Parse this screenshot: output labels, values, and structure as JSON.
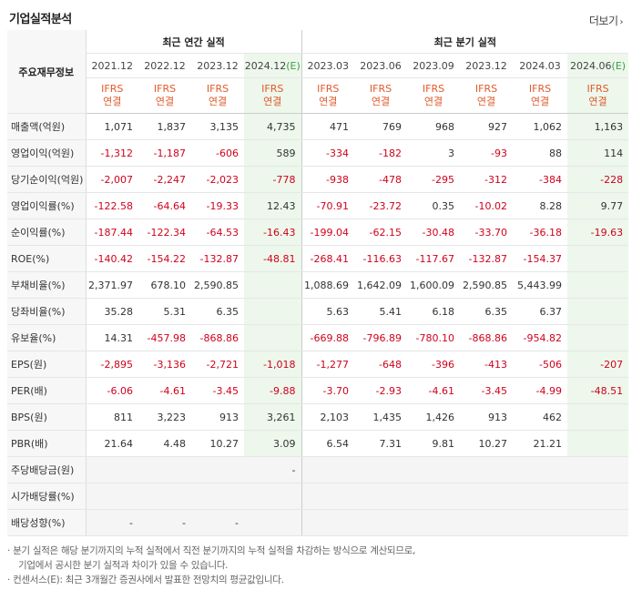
{
  "section_title": "기업실적분석",
  "more_link": "더보기",
  "more_chev": "›",
  "row_header_label": "주요재무정보",
  "groups": {
    "annual": "최근 연간 실적",
    "quarterly": "최근 분기 실적"
  },
  "periods": [
    {
      "label": "2021.12",
      "est": false
    },
    {
      "label": "2022.12",
      "est": false
    },
    {
      "label": "2023.12",
      "est": false
    },
    {
      "label": "2024.12",
      "est_mark": "(E)",
      "est": true
    },
    {
      "label": "2023.03",
      "est": false
    },
    {
      "label": "2023.06",
      "est": false
    },
    {
      "label": "2023.09",
      "est": false
    },
    {
      "label": "2023.12",
      "est": false
    },
    {
      "label": "2024.03",
      "est": false
    },
    {
      "label": "2024.06",
      "est_mark": "(E)",
      "est": true
    }
  ],
  "ifrs_line1": "IFRS",
  "ifrs_line2": "연결",
  "rows": [
    {
      "label": "매출액(억원)",
      "values": [
        "1,071",
        "1,837",
        "3,135",
        "4,735",
        "471",
        "769",
        "968",
        "927",
        "1,062",
        "1,163"
      ]
    },
    {
      "label": "영업이익(억원)",
      "values": [
        "-1,312",
        "-1,187",
        "-606",
        "589",
        "-334",
        "-182",
        "3",
        "-93",
        "88",
        "114"
      ]
    },
    {
      "label": "당기순이익(억원)",
      "values": [
        "-2,007",
        "-2,247",
        "-2,023",
        "-778",
        "-938",
        "-478",
        "-295",
        "-312",
        "-384",
        "-228"
      ]
    },
    {
      "label": "영업이익률(%)",
      "values": [
        "-122.58",
        "-64.64",
        "-19.33",
        "12.43",
        "-70.91",
        "-23.72",
        "0.35",
        "-10.02",
        "8.28",
        "9.77"
      ]
    },
    {
      "label": "순이익률(%)",
      "values": [
        "-187.44",
        "-122.34",
        "-64.53",
        "-16.43",
        "-199.04",
        "-62.15",
        "-30.48",
        "-33.70",
        "-36.18",
        "-19.63"
      ]
    },
    {
      "label": "ROE(%)",
      "values": [
        "-140.42",
        "-154.22",
        "-132.87",
        "-48.81",
        "-268.41",
        "-116.63",
        "-117.67",
        "-132.87",
        "-154.37",
        ""
      ]
    },
    {
      "label": "부채비율(%)",
      "values": [
        "2,371.97",
        "678.10",
        "2,590.85",
        "",
        "1,088.69",
        "1,642.09",
        "1,600.09",
        "2,590.85",
        "5,443.99",
        ""
      ]
    },
    {
      "label": "당좌비율(%)",
      "values": [
        "35.28",
        "5.31",
        "6.35",
        "",
        "5.63",
        "5.41",
        "6.18",
        "6.35",
        "6.37",
        ""
      ]
    },
    {
      "label": "유보율(%)",
      "values": [
        "14.31",
        "-457.98",
        "-868.86",
        "",
        "-669.88",
        "-796.89",
        "-780.10",
        "-868.86",
        "-954.82",
        ""
      ]
    },
    {
      "label": "EPS(원)",
      "values": [
        "-2,895",
        "-3,136",
        "-2,721",
        "-1,018",
        "-1,277",
        "-648",
        "-396",
        "-413",
        "-506",
        "-207"
      ]
    },
    {
      "label": "PER(배)",
      "values": [
        "-6.06",
        "-4.61",
        "-3.45",
        "-9.88",
        "-3.70",
        "-2.93",
        "-4.61",
        "-3.45",
        "-4.99",
        "-48.51"
      ]
    },
    {
      "label": "BPS(원)",
      "values": [
        "811",
        "3,223",
        "913",
        "3,261",
        "2,103",
        "1,435",
        "1,426",
        "913",
        "462",
        ""
      ]
    },
    {
      "label": "PBR(배)",
      "values": [
        "21.64",
        "4.48",
        "10.27",
        "3.09",
        "6.54",
        "7.31",
        "9.81",
        "10.27",
        "21.21",
        ""
      ]
    },
    {
      "label": "주당배당금(원)",
      "values": [
        "",
        "",
        "",
        "-",
        "",
        "",
        "",
        "",
        "",
        ""
      ]
    },
    {
      "label": "시가배당률(%)",
      "values": [
        "",
        "",
        "",
        "",
        "",
        "",
        "",
        "",
        "",
        ""
      ]
    },
    {
      "label": "배당성향(%)",
      "values": [
        "-",
        "-",
        "-",
        "",
        "",
        "",
        "",
        "",
        "",
        ""
      ]
    }
  ],
  "notes": [
    "· 분기 실적은 해당 분기까지의 누적 실적에서 직전 분기까지의 누적 실적을 차감하는 방식으로 계산되므로,",
    "기업에서 공시한 분기 실적과 차이가 있을 수 있습니다.",
    "· 컨센서스(E): 최근 3개월간 증권사에서 발표한 전망치의 평균값입니다."
  ],
  "colors": {
    "negative": "#d0021b",
    "ifrs": "#e05a2a",
    "estimate_bg": "#edf7ec",
    "estimate_mark": "#3aa145"
  }
}
